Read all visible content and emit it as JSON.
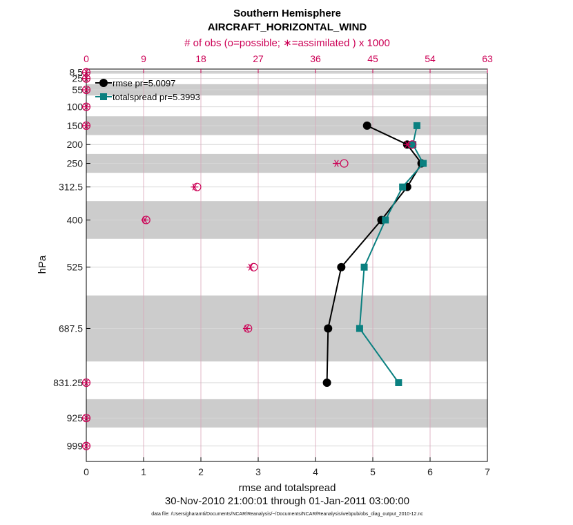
{
  "chart_data": {
    "type": "line",
    "title": "Southern Hemisphere",
    "subtitle": "AIRCRAFT_HORIZONTAL_WIND",
    "top_axis_label": "# of obs (o=possible; ∗=assimilated ) x 1000",
    "xlabel": "rmse and totalspread",
    "ylabel": "hPa",
    "time_range": "30-Nov-2010 21:00:01 through 01-Jan-2011 03:00:00",
    "footnote": "data file: /Users/gharamti/Documents/NCAR/Reanalysis/~/Documents/NCAR/Reanalysis/webpub/obs_diag_output_2010-12.nc",
    "xlim": [
      0,
      7
    ],
    "xticks": [
      "0",
      "1",
      "2",
      "3",
      "4",
      "5",
      "6",
      "7"
    ],
    "top_xlim": [
      0,
      63
    ],
    "top_xticks": [
      "0",
      "9",
      "18",
      "27",
      "36",
      "45",
      "54",
      "63"
    ],
    "y_axis": "reversed",
    "ylim": [
      1040,
      0
    ],
    "levels": [
      8.5,
      25,
      55,
      100,
      150,
      200,
      250,
      312.5,
      400,
      525,
      687.5,
      831.25,
      925,
      999
    ],
    "ytick_labels": [
      "8.5",
      "25",
      "55",
      "100",
      "150",
      "200",
      "250",
      "312.5",
      "400",
      "525",
      "687.5",
      "831.25",
      "925",
      "999"
    ],
    "shaded_layers": [
      [
        5,
        12
      ],
      [
        40,
        70
      ],
      [
        125,
        175
      ],
      [
        225,
        275
      ],
      [
        350,
        450
      ],
      [
        600,
        775
      ],
      [
        875,
        950
      ]
    ],
    "grid": true,
    "legend_position": "top-left",
    "series": [
      {
        "name": "rmse pr=5.0097",
        "color": "#000000",
        "marker": "circle",
        "y": [
          150,
          200,
          250,
          312.5,
          400,
          525,
          687.5,
          831.25
        ],
        "x": [
          4.9,
          5.6,
          5.85,
          5.6,
          5.15,
          4.45,
          4.22,
          4.2
        ]
      },
      {
        "name": "totalspread pr=5.3993",
        "color": "#0a8080",
        "marker": "square",
        "y": [
          150,
          200,
          250,
          312.5,
          400,
          525,
          687.5,
          831.25
        ],
        "x": [
          5.77,
          5.7,
          5.88,
          5.52,
          5.22,
          4.85,
          4.77,
          5.45
        ]
      }
    ],
    "obs_counts": {
      "units": "thousands",
      "color": "#cc0055",
      "levels": [
        8.5,
        25,
        55,
        100,
        150,
        200,
        250,
        312.5,
        400,
        525,
        687.5,
        831.25,
        925,
        999
      ],
      "possible": [
        0,
        0,
        0,
        0,
        0,
        51.2,
        40.5,
        17.4,
        9.4,
        26.3,
        25.4,
        0,
        0,
        0
      ],
      "assimilated": [
        0,
        0,
        0,
        0,
        0,
        50.4,
        39.3,
        17.0,
        9.2,
        25.8,
        25.2,
        0,
        0,
        0
      ]
    }
  }
}
